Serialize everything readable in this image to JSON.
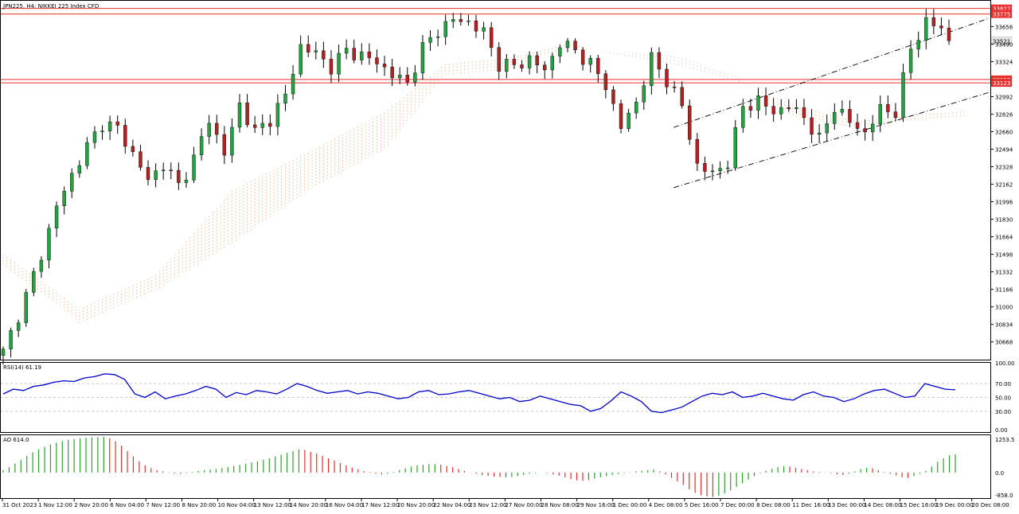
{
  "header": {
    "symbol_title": "JPN225, H4: NIKKEI 225 Index CFD",
    "rsi_label": "RSI(14) 61.19",
    "ao_label": "AO 614.0"
  },
  "colors": {
    "bull": "#26a041",
    "bear": "#b22222",
    "wick": "#000000",
    "grid": "#c8c8c8",
    "hline": "#e83030",
    "rsi_line": "#0000c8",
    "ao_up": "#2ca02c",
    "ao_down": "#e03030",
    "cloud_a": "#f4a26b",
    "cloud_b": "#c8b4e6"
  },
  "chart_data": [
    {
      "type": "candlestick",
      "ylim": [
        30500,
        33900
      ],
      "y_ticks": [
        "33656",
        "33490",
        "33324",
        "32992",
        "32826",
        "32660",
        "32494",
        "32328",
        "32162",
        "31996",
        "31830",
        "31664",
        "31498",
        "31332",
        "31166",
        "31000",
        "30834",
        "30668"
      ],
      "x_tick_labels": [
        "31 Oct 2023",
        "1 Nov 12:00",
        "2 Nov 20:00",
        "6 Nov 04:00",
        "7 Nov 12:00",
        "8 Nov 20:00",
        "10 Nov 04:00",
        "13 Nov 12:00",
        "14 Nov 20:00",
        "16 Nov 04:00",
        "17 Nov 12:00",
        "20 Nov 20:00",
        "22 Nov 04:00",
        "23 Nov 12:00",
        "27 Nov 00:00",
        "28 Nov 08:00",
        "29 Nov 16:00",
        "1 Dec 00:00",
        "4 Dec 08:00",
        "5 Dec 16:00",
        "7 Dec 00:00",
        "8 Dec 08:00",
        "11 Dec 16:00",
        "13 Dec 00:00",
        "14 Dec 08:00",
        "15 Dec 16:00",
        "19 Dec 00:00",
        "20 Dec 08:00"
      ],
      "horizontal_levels": [
        {
          "label": "33827",
          "value": 33827
        },
        {
          "label": "33775",
          "value": 33775
        },
        {
          "label": "33155",
          "value": 33155
        },
        {
          "label": "33123",
          "value": 33123
        }
      ],
      "current_price_label": "33521",
      "current_price": 33521,
      "channel_upper": [
        {
          "x": 0.68,
          "y": 32700
        },
        {
          "x": 0.945,
          "y": 33560
        }
      ],
      "channel_lower": [
        {
          "x": 0.68,
          "y": 32130
        },
        {
          "x": 0.945,
          "y": 32880
        }
      ],
      "close_path": [
        [
          0,
          30570
        ],
        [
          3,
          31100
        ],
        [
          5,
          31500
        ],
        [
          7,
          31950
        ],
        [
          9,
          32250
        ],
        [
          11,
          32520
        ],
        [
          13,
          32740
        ],
        [
          15,
          32690
        ],
        [
          17,
          32450
        ],
        [
          19,
          32200
        ],
        [
          21,
          32350
        ],
        [
          23,
          32150
        ],
        [
          25,
          32400
        ],
        [
          27,
          32780
        ],
        [
          29,
          32450
        ],
        [
          31,
          32920
        ],
        [
          33,
          32650
        ],
        [
          35,
          32780
        ],
        [
          37,
          33000
        ],
        [
          39,
          33470
        ],
        [
          41,
          33400
        ],
        [
          43,
          33270
        ],
        [
          45,
          33430
        ],
        [
          47,
          33380
        ],
        [
          49,
          33320
        ],
        [
          51,
          33200
        ],
        [
          53,
          33120
        ],
        [
          55,
          33450
        ],
        [
          57,
          33620
        ],
        [
          59,
          33720
        ],
        [
          61,
          33700
        ],
        [
          63,
          33600
        ],
        [
          65,
          33300
        ],
        [
          67,
          33280
        ],
        [
          69,
          33350
        ],
        [
          71,
          33240
        ],
        [
          73,
          33500
        ],
        [
          75,
          33430
        ],
        [
          77,
          33300
        ],
        [
          79,
          33100
        ],
        [
          81,
          32700
        ],
        [
          83,
          32940
        ],
        [
          85,
          33350
        ],
        [
          87,
          33150
        ],
        [
          89,
          32900
        ],
        [
          91,
          32340
        ],
        [
          93,
          32260
        ],
        [
          95,
          32370
        ],
        [
          97,
          32900
        ],
        [
          99,
          32950
        ],
        [
          101,
          32850
        ],
        [
          103,
          32900
        ],
        [
          105,
          32800
        ],
        [
          107,
          32580
        ],
        [
          109,
          32900
        ],
        [
          111,
          32750
        ],
        [
          113,
          32650
        ],
        [
          115,
          32870
        ],
        [
          117,
          32850
        ],
        [
          119,
          33450
        ],
        [
          121,
          33700
        ],
        [
          123,
          33640
        ],
        [
          124,
          33521
        ]
      ],
      "ichimoku_cloud": {
        "senkou_a": [
          [
            0,
            31500
          ],
          [
            10,
            30980
          ],
          [
            20,
            31300
          ],
          [
            30,
            32100
          ],
          [
            40,
            32460
          ],
          [
            50,
            32840
          ],
          [
            58,
            33300
          ],
          [
            66,
            33350
          ],
          [
            74,
            33490
          ],
          [
            80,
            33400
          ],
          [
            88,
            33300
          ],
          [
            96,
            33150
          ],
          [
            104,
            32900
          ],
          [
            112,
            32760
          ],
          [
            120,
            32820
          ],
          [
            126,
            32850
          ]
        ],
        "senkou_b": [
          [
            0,
            31400
          ],
          [
            10,
            30850
          ],
          [
            20,
            31150
          ],
          [
            30,
            31600
          ],
          [
            40,
            32100
          ],
          [
            50,
            32480
          ],
          [
            58,
            33200
          ],
          [
            66,
            33250
          ],
          [
            74,
            33460
          ],
          [
            80,
            33420
          ],
          [
            88,
            33380
          ],
          [
            96,
            33200
          ],
          [
            104,
            32780
          ],
          [
            112,
            32700
          ],
          [
            120,
            32760
          ],
          [
            126,
            32800
          ]
        ]
      }
    },
    {
      "type": "line",
      "title": "RSI(14) 61.19",
      "ylim": [
        0,
        100
      ],
      "y_ticks": [
        "100.00",
        "70.00",
        "50.00",
        "30.00",
        "0.00"
      ],
      "series": [
        {
          "name": "RSI(14)",
          "values": [
            55,
            62,
            60,
            66,
            68,
            72,
            74,
            73,
            78,
            80,
            84,
            83,
            76,
            55,
            50,
            58,
            48,
            52,
            55,
            60,
            66,
            62,
            50,
            57,
            54,
            60,
            58,
            55,
            62,
            70,
            66,
            60,
            56,
            58,
            60,
            55,
            58,
            56,
            52,
            48,
            50,
            58,
            60,
            54,
            55,
            58,
            60,
            56,
            52,
            48,
            50,
            44,
            46,
            52,
            48,
            44,
            40,
            38,
            30,
            34,
            45,
            58,
            52,
            44,
            30,
            28,
            32,
            36,
            44,
            52,
            56,
            54,
            58,
            50,
            52,
            56,
            52,
            48,
            46,
            54,
            58,
            52,
            50,
            44,
            48,
            55,
            60,
            62,
            56,
            50,
            52,
            70,
            66,
            62,
            61
          ]
        }
      ]
    },
    {
      "type": "bar",
      "title": "AO 614.0",
      "ylim": [
        -858,
        1253.5
      ],
      "y_ticks": [
        "1253.5",
        "0.0",
        "-858.0"
      ],
      "series": [
        {
          "name": "AO",
          "values": [
            80,
            180,
            300,
            420,
            560,
            680,
            780,
            860,
            940,
            1000,
            1060,
            1100,
            1130,
            1150,
            1170,
            1180,
            1190,
            1200,
            1150,
            1050,
            900,
            720,
            540,
            380,
            240,
            150,
            80,
            40,
            10,
            -30,
            -40,
            -20,
            20,
            60,
            80,
            100,
            120,
            150,
            180,
            220,
            260,
            300,
            340,
            380,
            430,
            480,
            540,
            600,
            660,
            720,
            780,
            760,
            700,
            640,
            560,
            480,
            400,
            320,
            240,
            170,
            110,
            50,
            20,
            -30,
            -60,
            -40,
            20,
            80,
            140,
            200,
            240,
            260,
            280,
            280,
            260,
            220,
            180,
            120,
            60,
            10,
            -40,
            -80,
            -110,
            -140,
            -150,
            -160,
            -150,
            -120,
            -80,
            -40,
            -20,
            0,
            -20,
            -60,
            -100,
            -160,
            -220,
            -260,
            -280,
            -260,
            -200,
            -160,
            -120,
            -80,
            -50,
            -20,
            10,
            40,
            60,
            80,
            100,
            40,
            -60,
            -180,
            -300,
            -420,
            -560,
            -680,
            -760,
            -800,
            -820,
            -780,
            -700,
            -600,
            -480,
            -360,
            -240,
            -120,
            -20,
            60,
            130,
            180,
            220,
            200,
            160,
            120,
            80,
            40,
            20,
            10,
            -20,
            -60,
            -80,
            -40,
            40,
            120,
            160,
            140,
            80,
            20,
            -40,
            -100,
            -160,
            -180,
            -120,
            -40,
            60,
            200,
            360,
            480,
            580,
            614
          ]
        }
      ]
    }
  ]
}
